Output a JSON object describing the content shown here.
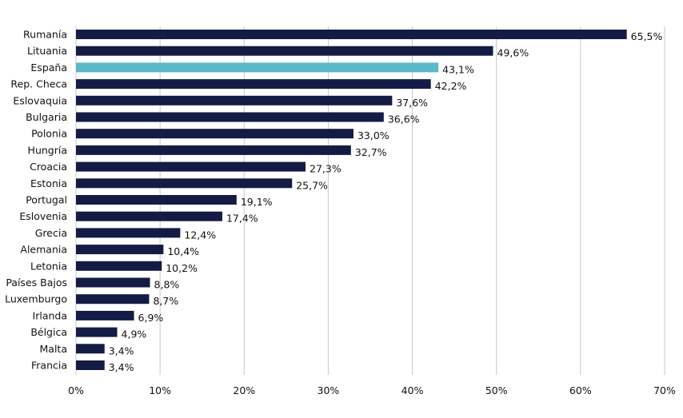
{
  "chart_data": {
    "type": "bar",
    "orientation": "horizontal",
    "title": "",
    "xlabel": "",
    "ylabel": "",
    "xlim": [
      0,
      70
    ],
    "x_ticks": [
      "0%",
      "10%",
      "20%",
      "30%",
      "40%",
      "50%",
      "60%",
      "70%"
    ],
    "grid": "vertical",
    "categories": [
      "Rumanía",
      "Lituania",
      "España",
      "Rep. Checa",
      "Eslovaquia",
      "Bulgaria",
      "Polonia",
      "Hungría",
      "Croacia",
      "Estonia",
      "Portugal",
      "Eslovenia",
      "Grecia",
      "Alemania",
      "Letonia",
      "Países Bajos",
      "Luxemburgo",
      "Irlanda",
      "Bélgica",
      "Malta",
      "Francia"
    ],
    "values": [
      65.5,
      49.6,
      43.1,
      42.2,
      37.6,
      36.6,
      33.0,
      32.7,
      27.3,
      25.7,
      19.1,
      17.4,
      12.4,
      10.4,
      10.2,
      8.8,
      8.7,
      6.9,
      4.9,
      3.4,
      3.4
    ],
    "value_labels": [
      "65,5%",
      "49,6%",
      "43,1%",
      "42,2%",
      "37,6%",
      "36,6%",
      "33,0%",
      "32,7%",
      "27,3%",
      "25,7%",
      "19,1%",
      "17,4%",
      "12,4%",
      "10,4%",
      "10,2%",
      "8,8%",
      "8,7%",
      "6,9%",
      "4,9%",
      "3,4%",
      "3,4%"
    ],
    "highlight": "España",
    "colors": {
      "bar": "#141b45",
      "highlight": "#5bb8c9",
      "grid": "#c8c8c8",
      "text": "#111111"
    }
  }
}
